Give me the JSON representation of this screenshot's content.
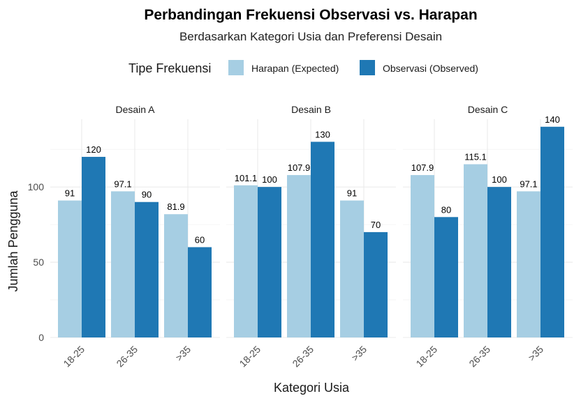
{
  "chart_data": {
    "type": "bar",
    "title": "Perbandingan Frekuensi Observasi vs. Harapan",
    "subtitle": "Berdasarkan Kategori Usia dan Preferensi Desain",
    "legend_title": "Tipe Frekuensi",
    "legend_position": "top",
    "xlabel": "Kategori Usia",
    "ylabel": "Jumlah Pengguna",
    "ylim": [
      0,
      140
    ],
    "yticks": [
      0,
      50,
      100
    ],
    "categories": [
      "18-25",
      "26-35",
      ">35"
    ],
    "series_meta": [
      {
        "name": "Harapan (Expected)",
        "color": "#a6cee3"
      },
      {
        "name": "Observasi (Observed)",
        "color": "#1f78b4"
      }
    ],
    "facets": [
      {
        "name": "Desain A",
        "expected": [
          91,
          97.1,
          81.9
        ],
        "observed": [
          120,
          90,
          60
        ],
        "expected_labels": [
          "91",
          "97.1",
          "81.9"
        ],
        "observed_labels": [
          "120",
          "90",
          "60"
        ]
      },
      {
        "name": "Desain B",
        "expected": [
          101.1,
          107.9,
          91
        ],
        "observed": [
          100,
          130,
          70
        ],
        "expected_labels": [
          "101.1",
          "107.9",
          "91"
        ],
        "observed_labels": [
          "100",
          "130",
          "70"
        ]
      },
      {
        "name": "Desain C",
        "expected": [
          107.9,
          115.1,
          97.1
        ],
        "observed": [
          80,
          100,
          140
        ],
        "expected_labels": [
          "107.9",
          "115.1",
          "97.1"
        ],
        "observed_labels": [
          "80",
          "100",
          "140"
        ]
      }
    ]
  }
}
